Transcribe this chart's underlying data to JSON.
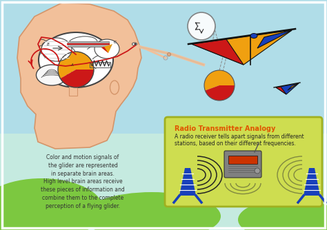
{
  "bg_sky": "#b0dde8",
  "bg_lower": "#c5eae0",
  "green_hill": "#7cc840",
  "head_skin": "#f2c09a",
  "head_outline": "#d4956a",
  "brain_color": "#ffffff",
  "brain_outline": "#444444",
  "box_bg": "#cedd50",
  "box_border": "#a0b020",
  "box_title": "Radio Transmitter Analogy",
  "box_title_color": "#e05500",
  "box_text_line1": "A radio receiver tells apart signals from different",
  "box_text_line2": "stations, based on their different frequencies.",
  "box_text_color": "#222222",
  "left_text_line1": "Color and motion signals of",
  "left_text_line2": "the glider are represented",
  "left_text_line3": "in separate brain areas.",
  "left_text_line4": "High level brain areas receive",
  "left_text_line5": "these pieces of information and",
  "left_text_line6": "combine them to the complete",
  "left_text_line7": "perception of a flying glider.",
  "left_text_color": "#333333",
  "glider_orange": "#f0a010",
  "glider_red": "#cc1818",
  "glider_blue": "#1840bb",
  "glider_dark": "#111111",
  "tower_blue": "#1840bb",
  "signal_dark": "#222222",
  "signal_olive": "#808840",
  "radio_gray1": "#808080",
  "radio_gray2": "#606870",
  "radio_screen": "#cc3300"
}
